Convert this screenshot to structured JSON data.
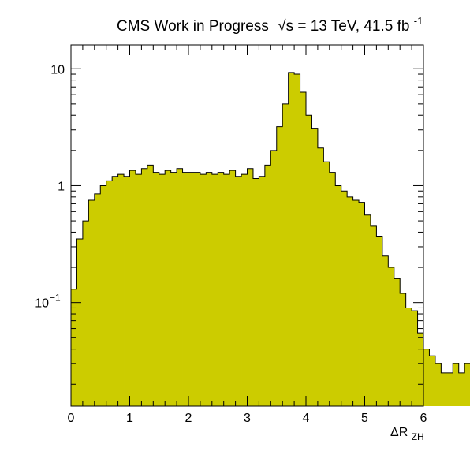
{
  "chart_data": {
    "type": "bar",
    "title": "CMS Work in Progress",
    "title_energy": "√s = 13 TeV, 41.5 fb",
    "title_lumi_exp": "-1",
    "xlabel": "ΔR",
    "xlabel_sub": "ZH",
    "ylabel": "",
    "xlim": [
      0,
      6
    ],
    "ylim": [
      0.013,
      16
    ],
    "yscale": "log",
    "grid": false,
    "fill_color": "#cccc00",
    "line_color": "#000000",
    "x_ticks": [
      0,
      1,
      2,
      3,
      4,
      5,
      6
    ],
    "x_tick_labels": [
      "0",
      "1",
      "2",
      "3",
      "4",
      "5",
      "6"
    ],
    "y_ticks": [
      {
        "value": 0.1,
        "base": "10",
        "exp": "−1"
      },
      {
        "value": 1,
        "base": "1",
        "exp": ""
      },
      {
        "value": 10,
        "base": "10",
        "exp": ""
      }
    ],
    "bin_width": 0.1,
    "bin_edges_start": 0,
    "values": [
      0.13,
      0.35,
      0.5,
      0.75,
      0.85,
      1.0,
      1.1,
      1.2,
      1.25,
      1.2,
      1.35,
      1.25,
      1.4,
      1.5,
      1.3,
      1.25,
      1.35,
      1.3,
      1.4,
      1.3,
      1.3,
      1.3,
      1.25,
      1.3,
      1.25,
      1.3,
      1.25,
      1.35,
      1.2,
      1.25,
      1.4,
      1.15,
      1.2,
      1.5,
      2.0,
      3.2,
      5.0,
      9.3,
      9.0,
      6.3,
      4.0,
      3.1,
      2.1,
      1.6,
      1.3,
      1.0,
      0.9,
      0.8,
      0.75,
      0.72,
      0.56,
      0.45,
      0.37,
      0.25,
      0.2,
      0.16,
      0.12,
      0.09,
      0.085,
      0.055,
      0.04,
      0.035,
      0.03,
      0.025,
      0.025,
      0.03,
      0.025,
      0.03
    ]
  }
}
